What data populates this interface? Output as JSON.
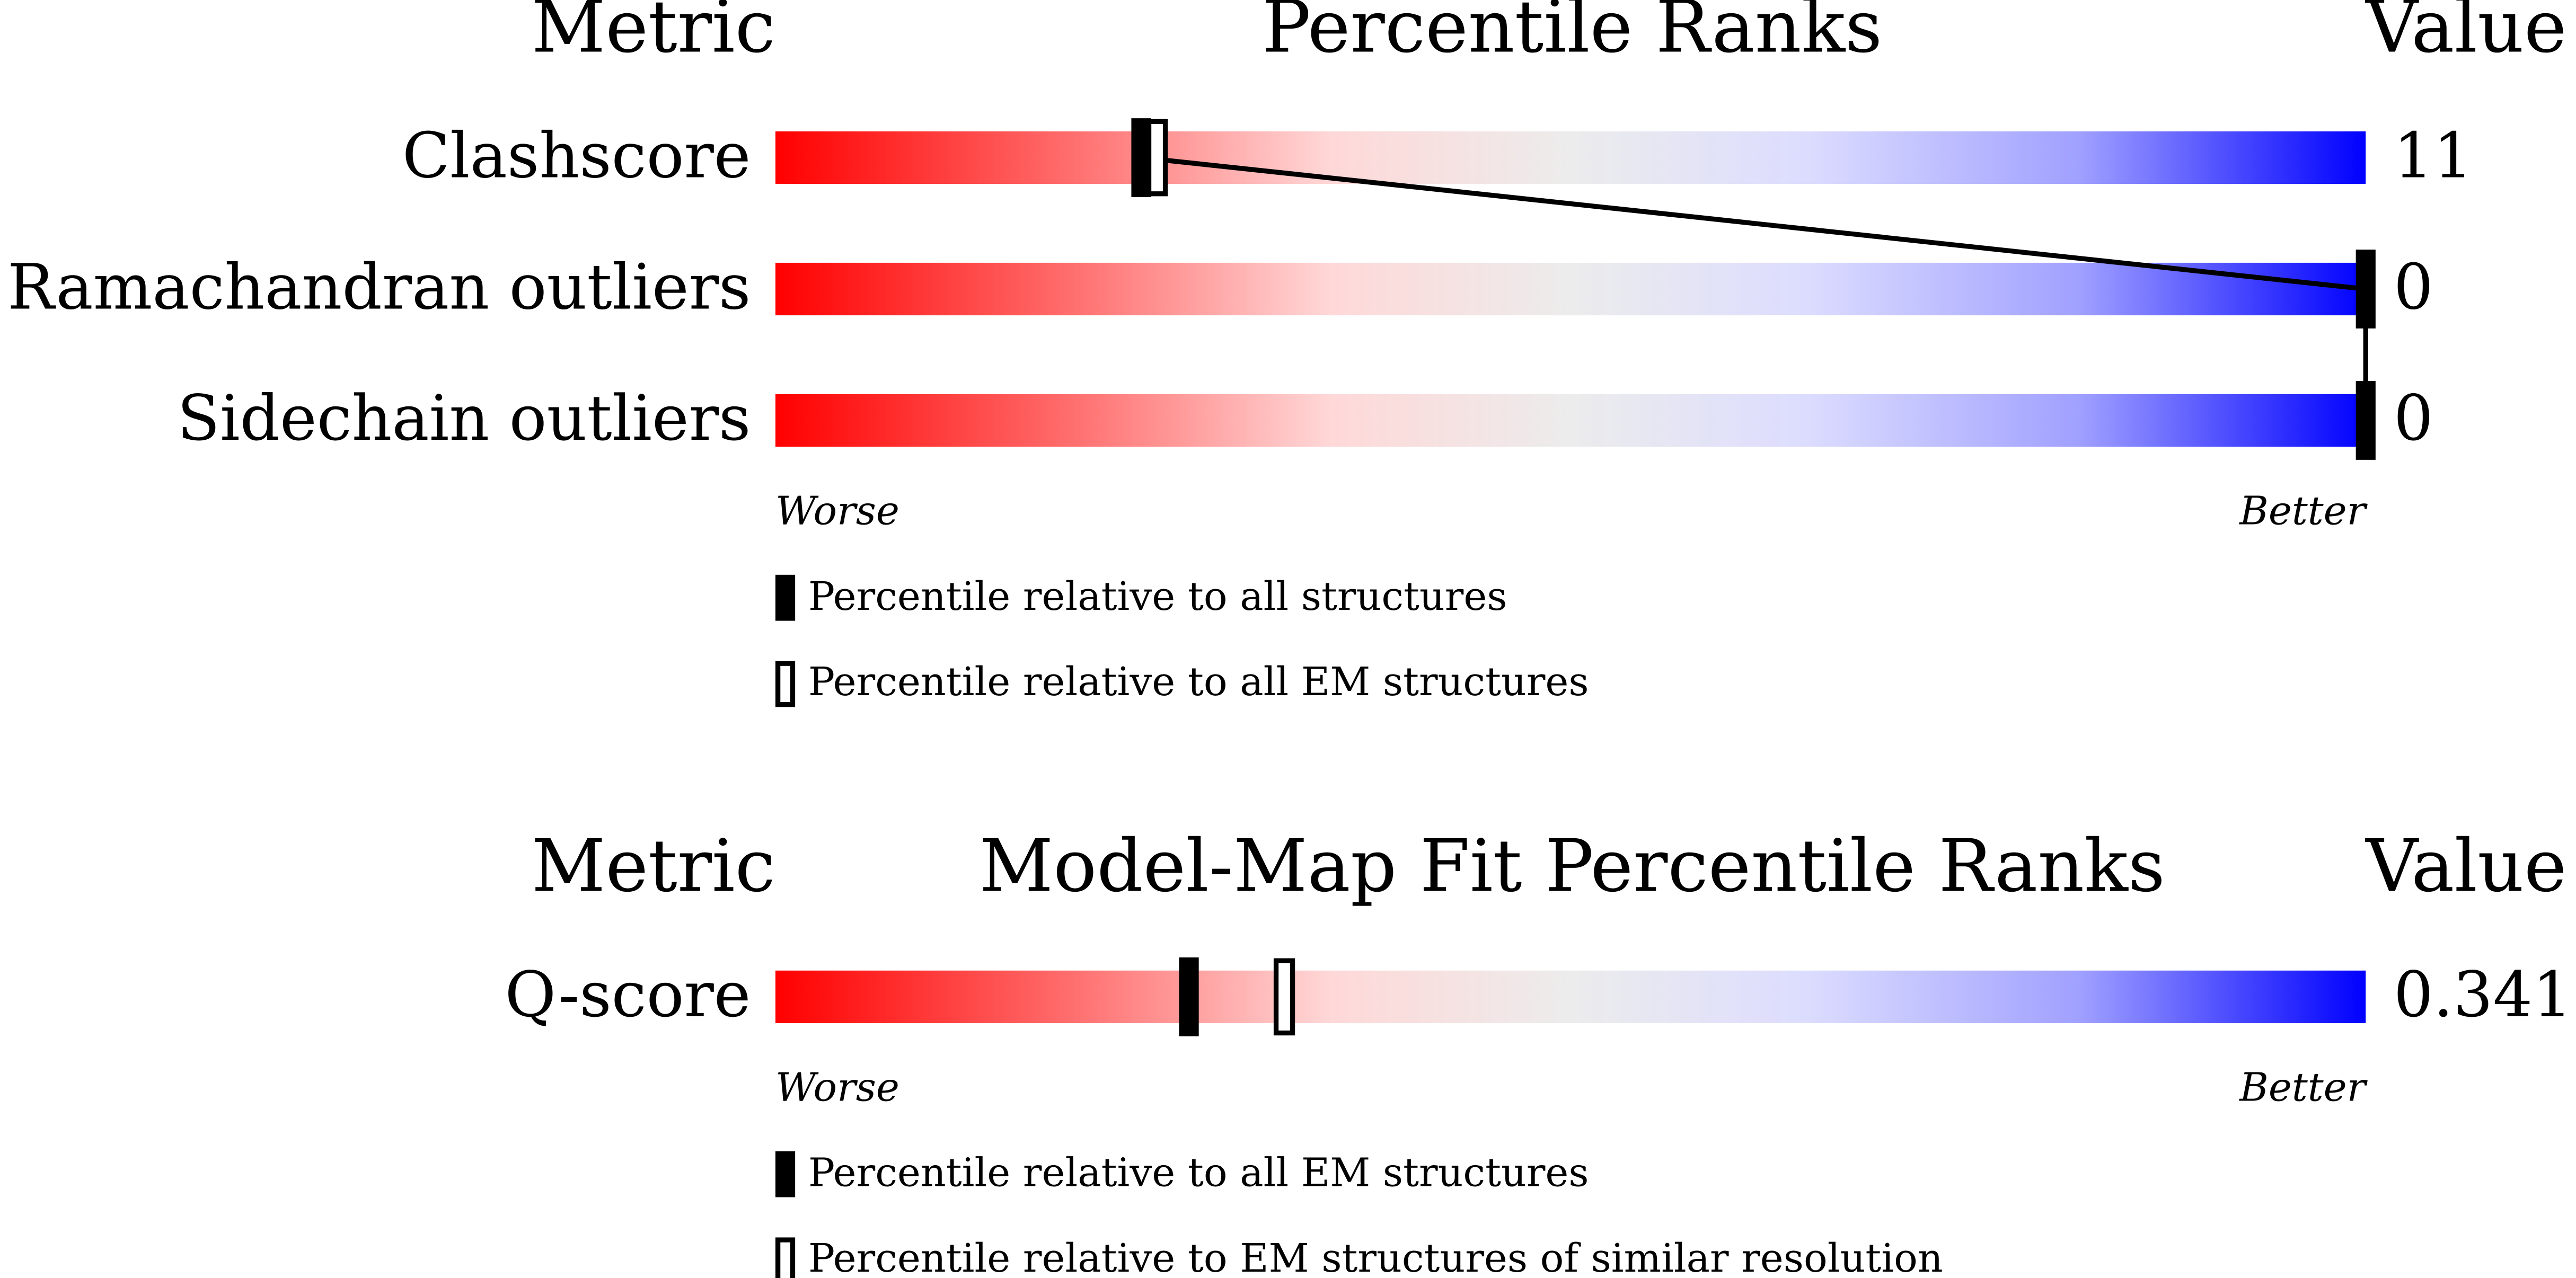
{
  "xlim": [
    0,
    100
  ],
  "panels": [
    {
      "headers": {
        "metric": "Metric",
        "title": "Percentile Ranks",
        "value": "Value"
      },
      "rows": [
        {
          "metric": "Clashscore",
          "value": 11,
          "percentile_all": 23,
          "percentile_em": 24
        },
        {
          "metric": "Ramachandran outliers",
          "value": 0,
          "percentile_all": 100
        },
        {
          "metric": "Sidechain outliers",
          "value": 0,
          "percentile_all": 100
        }
      ],
      "worse": "Worse",
      "better": "Better",
      "legend": [
        "Percentile relative to all structures",
        "Percentile relative to all EM structures"
      ]
    },
    {
      "headers": {
        "metric": "Metric",
        "title": "Model-Map Fit Percentile Ranks",
        "value": "Value"
      },
      "rows": [
        {
          "metric": "Q-score",
          "value": 0.341,
          "percentile_all": 26,
          "percentile_em": 32
        }
      ],
      "worse": "Worse",
      "better": "Better",
      "legend": [
        "Percentile relative to all EM structures",
        "Percentile relative to EM structures of similar resolution"
      ]
    }
  ]
}
